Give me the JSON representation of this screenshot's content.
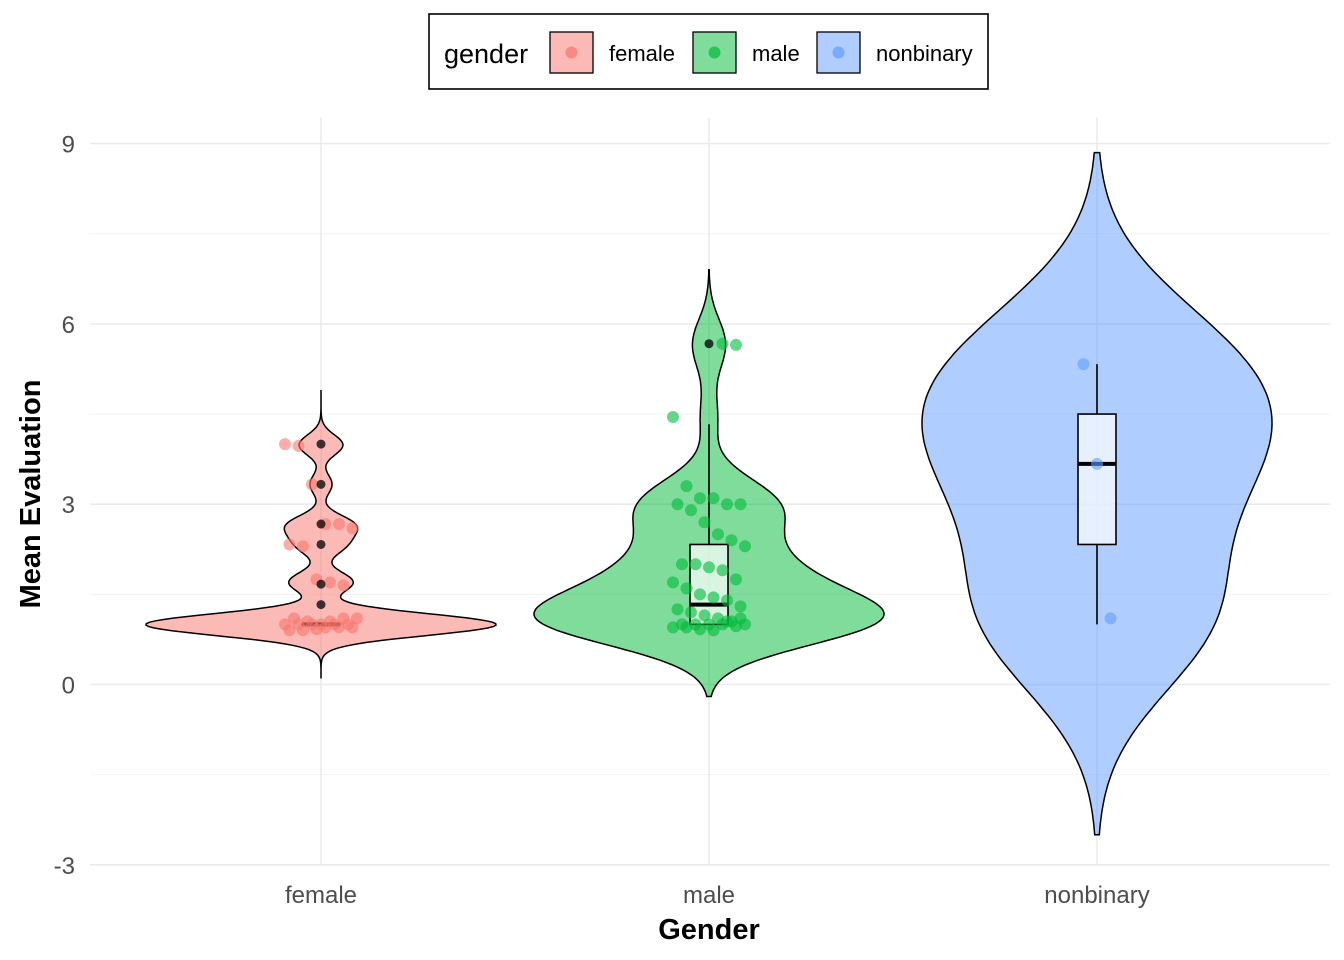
{
  "chart_data": {
    "type": "violin",
    "xlabel": "Gender",
    "ylabel": "Mean Evaluation",
    "ylim": [
      -3,
      9
    ],
    "yticks": [
      -3,
      0,
      3,
      6,
      9
    ],
    "ytick_labels": [
      "-3",
      "0",
      "3",
      "6",
      "9"
    ],
    "categories": [
      "female",
      "male",
      "nonbinary"
    ],
    "grid": true,
    "legend": {
      "title": "gender",
      "position": "top",
      "entries": [
        {
          "label": "female",
          "color": "#F8766D"
        },
        {
          "label": "male",
          "color": "#00BA38"
        },
        {
          "label": "nonbinary",
          "color": "#619CFF"
        }
      ]
    },
    "series": [
      {
        "name": "female",
        "color": "#F8766D",
        "violin_range": [
          0.1,
          4.9
        ],
        "box": {
          "q1": 1.0,
          "median": 1.0,
          "q3": 1.0,
          "whisker_low": 1.0,
          "whisker_high": 1.0
        },
        "outliers": [
          1.33,
          1.67,
          2.33,
          2.67,
          3.33,
          4.0
        ],
        "points": [
          4.0,
          3.97,
          3.33,
          2.67,
          2.67,
          2.6,
          2.33,
          2.3,
          1.75,
          1.7,
          1.65,
          1.1,
          1.1,
          1.05,
          1.0,
          1.0,
          1.0,
          1.0,
          1.0,
          1.0,
          0.95,
          0.95,
          0.95,
          0.9,
          0.9,
          0.92,
          1.05,
          1.1
        ]
      },
      {
        "name": "male",
        "color": "#00BA38",
        "violin_range": [
          -0.2,
          6.9
        ],
        "box": {
          "q1": 1.0,
          "median": 1.33,
          "q3": 2.33,
          "whisker_low": 1.0,
          "whisker_high": 4.33
        },
        "outliers": [
          5.67
        ],
        "points": [
          5.67,
          5.65,
          4.45,
          3.3,
          3.1,
          3.1,
          3.0,
          3.0,
          3.0,
          2.9,
          2.7,
          2.5,
          2.4,
          2.3,
          2.0,
          2.0,
          1.95,
          1.9,
          1.75,
          1.7,
          1.6,
          1.5,
          1.45,
          1.4,
          1.3,
          1.25,
          1.2,
          1.15,
          1.1,
          1.05,
          1.0,
          1.0,
          1.0,
          1.0,
          1.0,
          0.97,
          0.95,
          0.95,
          0.92,
          0.9,
          1.05,
          1.1
        ]
      },
      {
        "name": "nonbinary",
        "color": "#619CFF",
        "violin_range": [
          -2.5,
          8.85
        ],
        "box": {
          "q1": 2.33,
          "median": 3.67,
          "q3": 4.5,
          "whisker_low": 1.0,
          "whisker_high": 5.33
        },
        "outliers": [],
        "points": [
          5.33,
          3.67,
          1.1
        ]
      }
    ]
  }
}
